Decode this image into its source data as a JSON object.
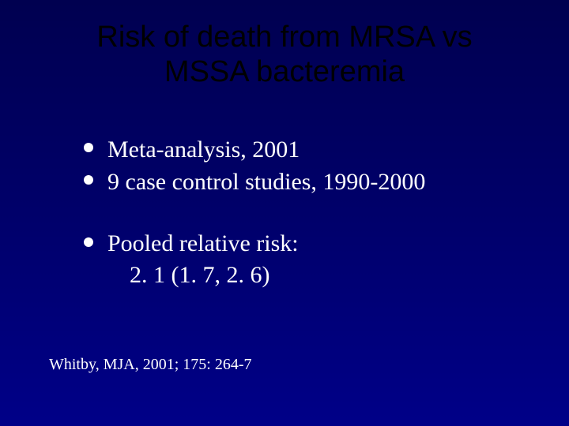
{
  "slide": {
    "background_gradient": [
      "#000050",
      "#00006a",
      "#000088"
    ],
    "title": {
      "text_line1": "Risk of death from MRSA vs",
      "text_line2": "MSSA bacteremia",
      "color": "#000000",
      "font_family": "Arial",
      "font_size_pt": 38
    },
    "bullets_group1": {
      "items": [
        {
          "text": "Meta-analysis, 2001"
        },
        {
          "text": "9 case control studies, 1990-2000"
        }
      ],
      "color": "#ffffff",
      "bullet_color": "#ffffff",
      "font_family": "Times New Roman",
      "font_size_pt": 30
    },
    "bullets_group2": {
      "lead_text": "Pooled relative risk:",
      "indent_text": "2. 1  (1. 7, 2. 6)",
      "color": "#ffffff",
      "bullet_color": "#ffffff",
      "font_family": "Times New Roman",
      "font_size_pt": 30
    },
    "citation": {
      "text": "Whitby, MJA, 2001; 175: 264-7",
      "color": "#ffffff",
      "font_family": "Times New Roman",
      "font_size_pt": 20
    }
  }
}
